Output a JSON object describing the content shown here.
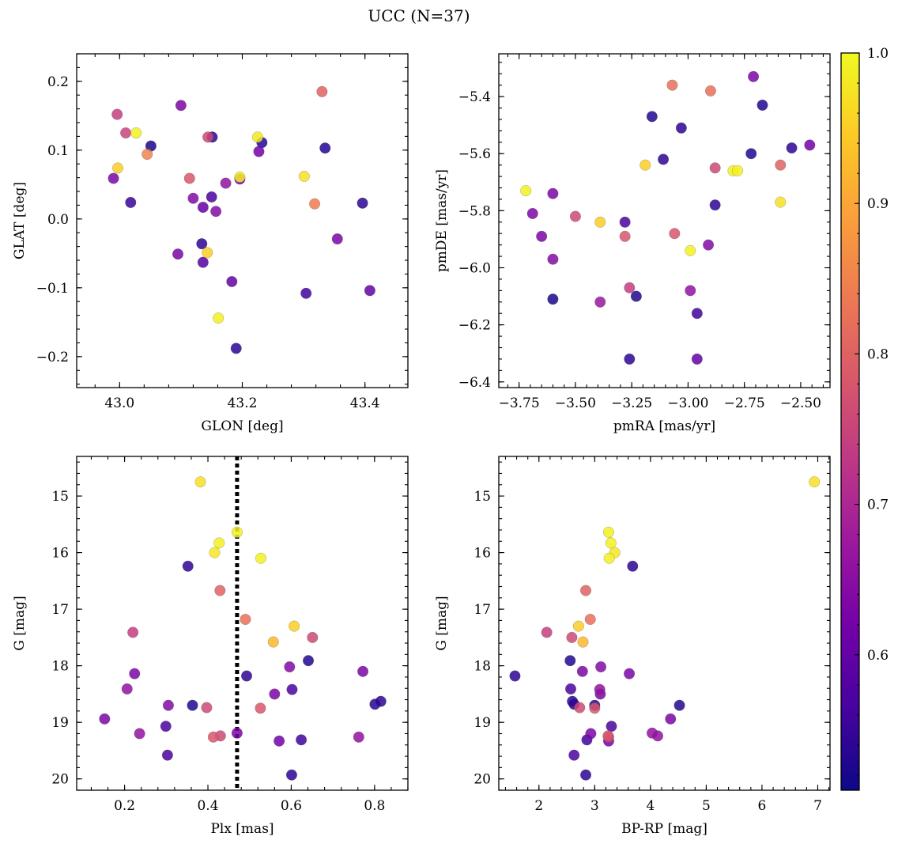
{
  "figure": {
    "title": "UCC (N=37)"
  },
  "colormap": {
    "name": "plasma",
    "range": [
      0.51,
      1.0
    ],
    "ticks": [
      "0.6",
      "0.7",
      "0.8",
      "0.9",
      "1.0"
    ],
    "tick_values": [
      0.6,
      0.7,
      0.8,
      0.9,
      1.0
    ],
    "stops": [
      "#0d0887",
      "#46039f",
      "#7201a8",
      "#9c179e",
      "#bd3786",
      "#d8576b",
      "#ed7953",
      "#fb9f3a",
      "#fdca26",
      "#f0f921"
    ]
  },
  "chart_data": [
    {
      "type": "scatter",
      "xlabel": "GLON [deg]",
      "ylabel": "GLAT [deg]",
      "xlim": [
        42.93,
        43.47
      ],
      "ylim": [
        -0.245,
        0.24
      ],
      "xticks": [
        43.0,
        43.2,
        43.4
      ],
      "xtick_labels": [
        "43.0",
        "43.2",
        "43.4"
      ],
      "yticks": [
        -0.2,
        -0.1,
        0.0,
        0.1,
        0.2
      ],
      "ytick_labels": [
        "−0.2",
        "−0.1",
        "0.0",
        "0.1",
        "0.2"
      ],
      "x": [
        43.33,
        43.1,
        42.996,
        43.027,
        43.01,
        43.151,
        43.144,
        43.225,
        43.232,
        43.051,
        43.045,
        43.227,
        42.997,
        43.335,
        43.301,
        43.196,
        43.114,
        42.99,
        43.173,
        43.196,
        43.12,
        43.018,
        43.396,
        43.318,
        43.15,
        43.136,
        43.157,
        43.355,
        43.134,
        43.095,
        43.143,
        43.136,
        43.183,
        43.304,
        43.408,
        43.161,
        43.19
      ],
      "y": [
        0.185,
        0.165,
        0.152,
        0.125,
        0.125,
        0.119,
        0.119,
        0.119,
        0.111,
        0.106,
        0.094,
        0.098,
        0.074,
        0.103,
        0.062,
        0.061,
        0.059,
        0.059,
        0.052,
        0.058,
        0.03,
        0.024,
        0.023,
        0.022,
        0.032,
        0.017,
        0.011,
        -0.029,
        -0.036,
        -0.051,
        -0.049,
        -0.063,
        -0.091,
        -0.108,
        -0.104,
        -0.144,
        -0.188
      ],
      "c": [
        0.8,
        0.63,
        0.74,
        0.99,
        0.75,
        0.54,
        0.76,
        0.98,
        0.53,
        0.52,
        0.85,
        0.62,
        0.95,
        0.53,
        0.97,
        0.99,
        0.78,
        0.63,
        0.66,
        0.62,
        0.64,
        0.55,
        0.54,
        0.84,
        0.57,
        0.6,
        0.64,
        0.63,
        0.54,
        0.63,
        0.95,
        0.58,
        0.6,
        0.56,
        0.6,
        0.99,
        0.54
      ]
    },
    {
      "type": "scatter",
      "xlabel": "pmRA [mas/yr]",
      "ylabel": "pmDE [mas/yr]",
      "xlim": [
        -3.84,
        -2.37
      ],
      "ylim": [
        -6.42,
        -5.25
      ],
      "xticks": [
        -3.75,
        -3.5,
        -3.25,
        -3.0,
        -2.75,
        -2.5
      ],
      "xtick_labels": [
        "−3.75",
        "−3.50",
        "−3.25",
        "−3.00",
        "−2.75",
        "−2.50"
      ],
      "yticks": [
        -6.4,
        -6.2,
        -6.0,
        -5.8,
        -5.6,
        -5.4
      ],
      "ytick_labels": [
        "−6.4",
        "−6.2",
        "−6.0",
        "−5.8",
        "−5.6",
        "−5.4"
      ],
      "x": [
        -2.71,
        -3.07,
        -2.9,
        -2.67,
        -3.16,
        -3.03,
        -2.72,
        -2.54,
        -2.46,
        -3.11,
        -3.19,
        -2.88,
        -2.8,
        -2.78,
        -2.59,
        -2.59,
        -3.72,
        -3.6,
        -3.69,
        -3.5,
        -3.39,
        -3.28,
        -2.88,
        -3.65,
        -3.06,
        -3.28,
        -3.6,
        -2.99,
        -2.91,
        -3.26,
        -2.99,
        -3.6,
        -3.23,
        -3.39,
        -2.96,
        -2.96,
        -3.26
      ],
      "y": [
        -5.33,
        -5.36,
        -5.38,
        -5.43,
        -5.47,
        -5.51,
        -5.6,
        -5.58,
        -5.57,
        -5.62,
        -5.64,
        -5.65,
        -5.66,
        -5.66,
        -5.64,
        -5.77,
        -5.73,
        -5.74,
        -5.81,
        -5.82,
        -5.84,
        -5.84,
        -5.78,
        -5.89,
        -5.88,
        -5.89,
        -5.97,
        -5.94,
        -5.92,
        -6.07,
        -6.08,
        -6.11,
        -6.1,
        -6.12,
        -6.16,
        -6.32,
        -6.32
      ],
      "c": [
        0.63,
        0.82,
        0.82,
        0.53,
        0.53,
        0.54,
        0.53,
        0.54,
        0.62,
        0.54,
        0.95,
        0.76,
        0.99,
        0.99,
        0.8,
        0.97,
        0.99,
        0.63,
        0.63,
        0.76,
        0.95,
        0.57,
        0.54,
        0.63,
        0.78,
        0.78,
        0.64,
        0.99,
        0.64,
        0.74,
        0.66,
        0.52,
        0.53,
        0.67,
        0.56,
        0.6,
        0.54
      ]
    },
    {
      "type": "scatter",
      "xlabel": "Plx [mas]",
      "ylabel": "G [mag]",
      "xlim": [
        0.085,
        0.88
      ],
      "ylim": [
        20.2,
        14.3
      ],
      "y_inverted": true,
      "xticks": [
        0.2,
        0.4,
        0.6,
        0.8
      ],
      "xtick_labels": [
        "0.2",
        "0.4",
        "0.6",
        "0.8"
      ],
      "yticks": [
        15,
        16,
        17,
        18,
        19,
        20
      ],
      "ytick_labels": [
        "15",
        "16",
        "17",
        "18",
        "19",
        "20"
      ],
      "vline": 0.47,
      "x": [
        0.382,
        0.47,
        0.427,
        0.416,
        0.527,
        0.352,
        0.429,
        0.49,
        0.607,
        0.557,
        0.651,
        0.22,
        0.641,
        0.772,
        0.224,
        0.493,
        0.596,
        0.206,
        0.602,
        0.56,
        0.305,
        0.363,
        0.397,
        0.526,
        0.815,
        0.801,
        0.152,
        0.299,
        0.236,
        0.413,
        0.43,
        0.47,
        0.762,
        0.624,
        0.571,
        0.303,
        0.601
      ],
      "y": [
        14.75,
        15.64,
        15.83,
        16.0,
        16.1,
        16.24,
        16.67,
        17.18,
        17.3,
        17.58,
        17.5,
        17.41,
        17.91,
        18.1,
        18.14,
        18.18,
        18.02,
        18.41,
        18.42,
        18.5,
        18.7,
        18.7,
        18.74,
        18.75,
        18.63,
        18.68,
        18.94,
        19.07,
        19.2,
        19.26,
        19.24,
        19.19,
        19.26,
        19.31,
        19.33,
        19.58,
        19.93
      ],
      "c": [
        0.97,
        0.99,
        0.99,
        0.98,
        0.99,
        0.54,
        0.8,
        0.82,
        0.95,
        0.92,
        0.76,
        0.74,
        0.53,
        0.63,
        0.63,
        0.54,
        0.64,
        0.66,
        0.57,
        0.63,
        0.64,
        0.53,
        0.76,
        0.78,
        0.54,
        0.53,
        0.63,
        0.57,
        0.66,
        0.78,
        0.76,
        0.63,
        0.66,
        0.56,
        0.62,
        0.57,
        0.54
      ]
    },
    {
      "type": "scatter",
      "xlabel": "BP-RP [mag]",
      "ylabel": "G [mag]",
      "xlim": [
        1.28,
        7.22
      ],
      "ylim": [
        20.2,
        14.3
      ],
      "y_inverted": true,
      "xticks": [
        2,
        3,
        4,
        5,
        6,
        7
      ],
      "xtick_labels": [
        "2",
        "3",
        "4",
        "5",
        "6",
        "7"
      ],
      "yticks": [
        15,
        16,
        17,
        18,
        19,
        20
      ],
      "ytick_labels": [
        "15",
        "16",
        "17",
        "18",
        "19",
        "20"
      ],
      "x": [
        6.94,
        3.25,
        3.29,
        3.36,
        3.26,
        3.68,
        2.84,
        2.92,
        2.71,
        2.79,
        2.59,
        2.14,
        2.56,
        3.62,
        2.78,
        1.57,
        3.11,
        2.57,
        3.09,
        3.1,
        2.6,
        2.63,
        3.0,
        2.73,
        4.52,
        3.0,
        4.36,
        3.3,
        4.03,
        2.93,
        4.13,
        3.24,
        3.25,
        2.86,
        3.25,
        2.63,
        2.84
      ],
      "y": [
        14.75,
        15.64,
        15.83,
        16.0,
        16.1,
        16.24,
        16.67,
        17.18,
        17.3,
        17.58,
        17.5,
        17.41,
        17.91,
        18.14,
        18.1,
        18.18,
        18.02,
        18.41,
        18.42,
        18.5,
        18.63,
        18.68,
        18.7,
        18.74,
        18.7,
        18.75,
        18.94,
        19.07,
        19.19,
        19.2,
        19.24,
        19.24,
        19.26,
        19.31,
        19.33,
        19.58,
        19.93
      ],
      "c": [
        0.97,
        0.99,
        0.99,
        0.98,
        0.99,
        0.54,
        0.8,
        0.82,
        0.95,
        0.92,
        0.76,
        0.74,
        0.53,
        0.63,
        0.63,
        0.54,
        0.64,
        0.57,
        0.66,
        0.63,
        0.54,
        0.53,
        0.53,
        0.76,
        0.53,
        0.78,
        0.63,
        0.57,
        0.66,
        0.63,
        0.66,
        0.78,
        0.76,
        0.56,
        0.62,
        0.57,
        0.54
      ]
    }
  ]
}
